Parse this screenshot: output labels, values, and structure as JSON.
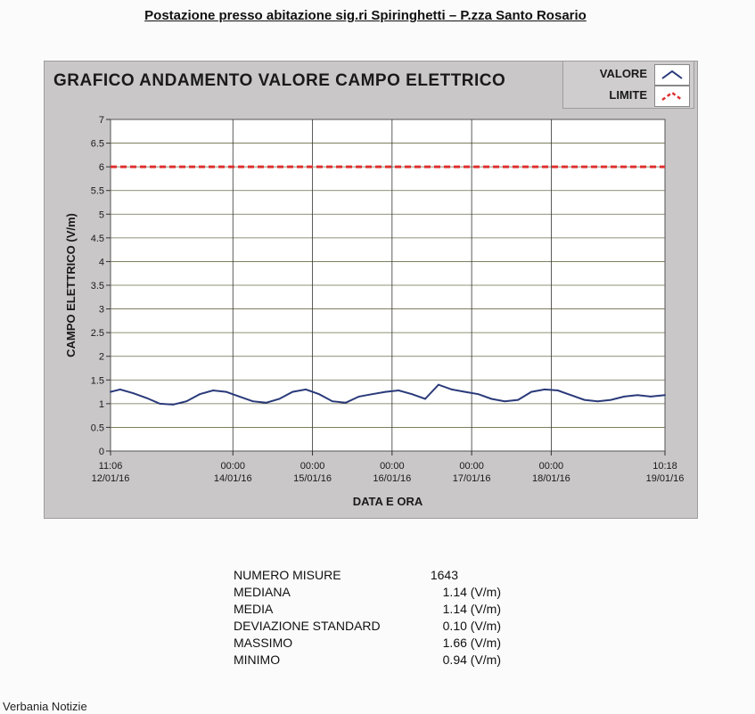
{
  "page_title": "Postazione presso abitazione sig.ri Spiringhetti – P.zza Santo Rosario",
  "legend": {
    "items": [
      {
        "label": "VALORE",
        "color": "#2a3a7a",
        "icon": "line-chevron-icon"
      },
      {
        "label": "LIMITE",
        "color": "#e03030",
        "icon": "dashed-chevron-icon"
      }
    ]
  },
  "chart_data": {
    "type": "line",
    "title": "GRAFICO ANDAMENTO VALORE CAMPO ELETTRICO",
    "xlabel": "DATA E ORA",
    "ylabel": "CAMPO ELETTRICO (V/m)",
    "ylim": [
      0,
      7
    ],
    "yticks": [
      "0",
      "0.5",
      "1",
      "1.5",
      "2",
      "2.5",
      "3",
      "3.5",
      "4",
      "4.5",
      "5",
      "5.5",
      "6",
      "6.5",
      "7"
    ],
    "xlim": [
      "2016-01-12 11:06",
      "2016-01-19 10:18"
    ],
    "xticks": [
      {
        "time": "11:06",
        "date": "12/01/16",
        "x": "2016-01-12 11:06"
      },
      {
        "time": "00:00",
        "date": "14/01/16",
        "x": "2016-01-14 00:00"
      },
      {
        "time": "00:00",
        "date": "15/01/16",
        "x": "2016-01-15 00:00"
      },
      {
        "time": "00:00",
        "date": "16/01/16",
        "x": "2016-01-16 00:00"
      },
      {
        "time": "00:00",
        "date": "17/01/16",
        "x": "2016-01-17 00:00"
      },
      {
        "time": "00:00",
        "date": "18/01/16",
        "x": "2016-01-18 00:00"
      },
      {
        "time": "10:18",
        "date": "19/01/16",
        "x": "2016-01-19 10:18"
      }
    ],
    "grid": true,
    "legend_position": "top-right",
    "series": [
      {
        "name": "VALORE",
        "color": "#2a3a7a",
        "x": [
          "2016-01-12 11:06",
          "2016-01-12 14:00",
          "2016-01-12 18:00",
          "2016-01-12 22:00",
          "2016-01-13 02:00",
          "2016-01-13 06:00",
          "2016-01-13 10:00",
          "2016-01-13 14:00",
          "2016-01-13 18:00",
          "2016-01-13 22:00",
          "2016-01-14 02:00",
          "2016-01-14 06:00",
          "2016-01-14 10:00",
          "2016-01-14 14:00",
          "2016-01-14 18:00",
          "2016-01-14 22:00",
          "2016-01-15 02:00",
          "2016-01-15 06:00",
          "2016-01-15 10:00",
          "2016-01-15 14:00",
          "2016-01-15 18:00",
          "2016-01-15 22:00",
          "2016-01-16 02:00",
          "2016-01-16 06:00",
          "2016-01-16 10:00",
          "2016-01-16 14:00",
          "2016-01-16 18:00",
          "2016-01-16 22:00",
          "2016-01-17 02:00",
          "2016-01-17 06:00",
          "2016-01-17 10:00",
          "2016-01-17 14:00",
          "2016-01-17 18:00",
          "2016-01-17 22:00",
          "2016-01-18 02:00",
          "2016-01-18 06:00",
          "2016-01-18 10:00",
          "2016-01-18 14:00",
          "2016-01-18 18:00",
          "2016-01-18 22:00",
          "2016-01-19 02:00",
          "2016-01-19 06:00",
          "2016-01-19 10:18"
        ],
        "values": [
          1.25,
          1.3,
          1.22,
          1.12,
          1.0,
          0.98,
          1.05,
          1.2,
          1.28,
          1.25,
          1.15,
          1.05,
          1.02,
          1.1,
          1.25,
          1.3,
          1.2,
          1.05,
          1.02,
          1.15,
          1.2,
          1.25,
          1.28,
          1.2,
          1.1,
          1.4,
          1.3,
          1.25,
          1.2,
          1.1,
          1.05,
          1.08,
          1.25,
          1.3,
          1.28,
          1.18,
          1.08,
          1.05,
          1.08,
          1.15,
          1.18,
          1.15,
          1.18
        ]
      },
      {
        "name": "LIMITE",
        "color": "#e03030",
        "x": [
          "2016-01-12 11:06",
          "2016-01-19 10:18"
        ],
        "values": [
          6,
          6
        ]
      }
    ]
  },
  "stats": {
    "rows": [
      {
        "name": "NUMERO MISURE",
        "value": "1643"
      },
      {
        "name": "MEDIANA",
        "value": "1.14 (V/m)"
      },
      {
        "name": "MEDIA",
        "value": "1.14 (V/m)"
      },
      {
        "name": "DEVIAZIONE STANDARD",
        "value": "0.10 (V/m)"
      },
      {
        "name": "MASSIMO",
        "value": "1.66 (V/m)"
      },
      {
        "name": "MINIMO",
        "value": "0.94 (V/m)"
      }
    ]
  },
  "watermark": "Verbania Notizie"
}
